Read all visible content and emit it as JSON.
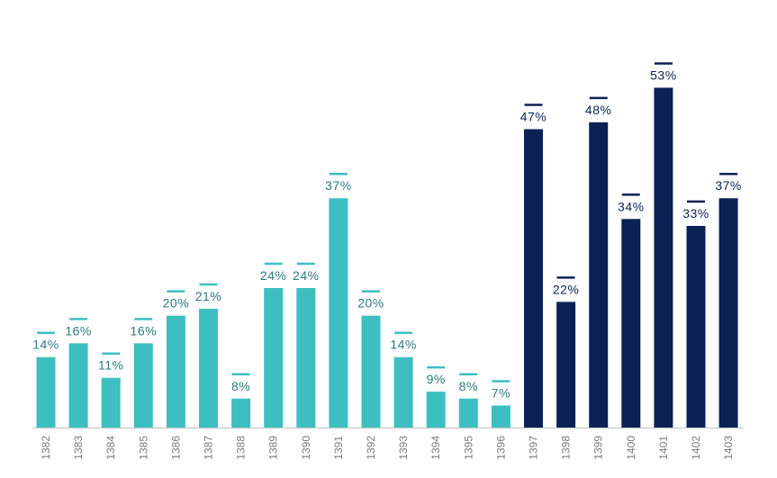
{
  "chart_data": {
    "type": "bar",
    "title": "",
    "xlabel": "",
    "ylabel": "",
    "categories": [
      "1382",
      "1383",
      "1384",
      "1385",
      "1386",
      "1387",
      "1388",
      "1389",
      "1390",
      "1391",
      "1392",
      "1393",
      "1394",
      "1395",
      "1396",
      "1397",
      "1398",
      "1399",
      "1400",
      "1401",
      "1402",
      "1403"
    ],
    "values": [
      14,
      16,
      11,
      16,
      20,
      21,
      8,
      24,
      24,
      37,
      20,
      14,
      9,
      8,
      7,
      47,
      22,
      48,
      34,
      53,
      33,
      37
    ],
    "data_labels": [
      "14%",
      "16%",
      "11%",
      "16%",
      "20%",
      "21%",
      "8%",
      "24%",
      "24%",
      "37%",
      "20%",
      "14%",
      "9%",
      "8%",
      "7%",
      "47%",
      "22%",
      "48%",
      "34%",
      "53%",
      "33%",
      "37%"
    ],
    "value_unit": "%",
    "ylim": [
      3.8,
      65.7
    ],
    "grid": false,
    "legend": "none",
    "colors": {
      "period_1": "#3dbfc1",
      "period_1_label": "#2b7a7c",
      "period_2": "#0b2256",
      "period_2_label": "#0b2256",
      "axis": "#d0d0d0",
      "tick_label": "#7a7a7a"
    },
    "color_split_index": 15
  }
}
